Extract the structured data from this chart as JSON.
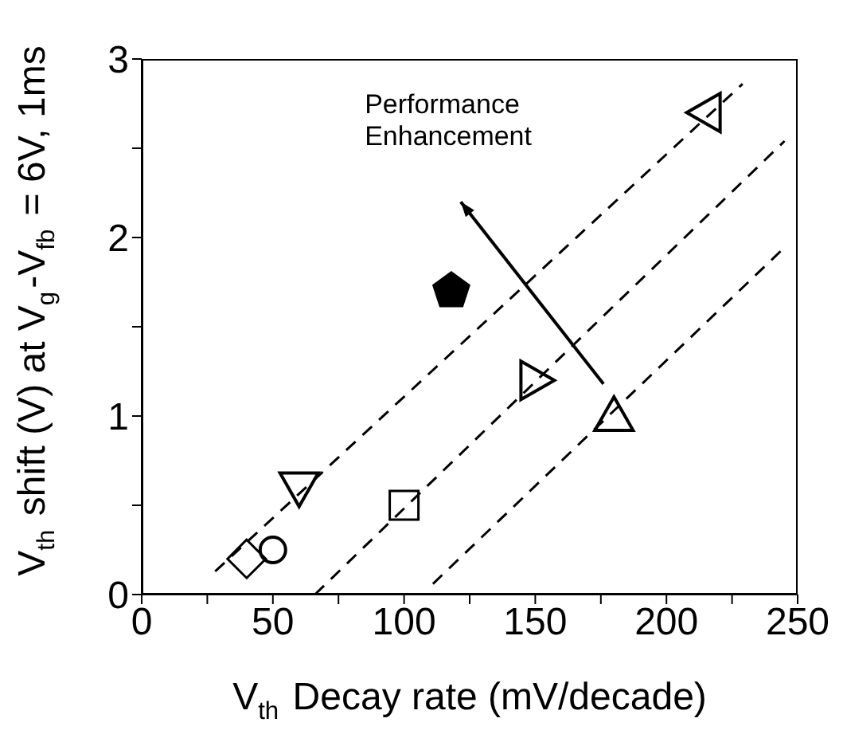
{
  "chart_data": {
    "type": "scatter",
    "xlabel": "V$_{th}$ Decay rate (mV/decade)",
    "ylabel": "V$_{th}$ shift (V) at V$_{g}$-V$_{fb}$ = 6V, 1ms",
    "xlim": [
      0,
      250
    ],
    "ylim": [
      0,
      3
    ],
    "xticks": [
      0,
      {
        "value": 25,
        "label": null
      },
      50,
      {
        "value": 75,
        "label": null
      },
      100,
      {
        "value": 125,
        "label": null
      },
      150,
      {
        "value": 175,
        "label": null
      },
      200,
      {
        "value": 225,
        "label": null
      },
      250
    ],
    "yticks": [
      0,
      {
        "value": 0.5,
        "label": null
      },
      1,
      {
        "value": 1.5,
        "label": null
      },
      2,
      {
        "value": 2.5,
        "label": null
      },
      3
    ],
    "annotations": [
      "Performance Enhancement"
    ],
    "series": [
      {
        "marker": "diamond",
        "color": "#000000",
        "x": [
          40
        ],
        "values": [
          0.2
        ]
      },
      {
        "marker": "circle",
        "color": "#000000",
        "x": [
          50
        ],
        "values": [
          0.25
        ]
      },
      {
        "marker": "triangle-down",
        "color": "#000000",
        "x": [
          60
        ],
        "values": [
          0.6
        ]
      },
      {
        "marker": "square",
        "color": "#000000",
        "x": [
          100
        ],
        "values": [
          0.5
        ]
      },
      {
        "marker": "triangle-right",
        "color": "#000000",
        "x": [
          150
        ],
        "values": [
          1.2
        ]
      },
      {
        "marker": "triangle",
        "color": "#000000",
        "x": [
          180
        ],
        "values": [
          1.0
        ]
      },
      {
        "marker": "triangle-left",
        "color": "#000000",
        "x": [
          215
        ],
        "values": [
          2.7
        ]
      },
      {
        "color": "#000000",
        "x": [
          118
        ],
        "values": [
          1.7
        ]
      },
      {
        "type": "line",
        "marker": "none",
        "line_style": "dashed",
        "color": "#000000",
        "x": [
          28,
          229
        ],
        "values": [
          0.13,
          2.86
        ]
      },
      {
        "type": "line",
        "marker": "none",
        "line_style": "dashed",
        "color": "#000000",
        "x": [
          66,
          245
        ],
        "values": [
          0,
          2.54
        ]
      },
      {
        "type": "line",
        "marker": "none",
        "line_style": "dashed",
        "color": "#000000",
        "x": [
          111,
          244
        ],
        "values": [
          0.06,
          1.93
        ]
      }
    ]
  }
}
